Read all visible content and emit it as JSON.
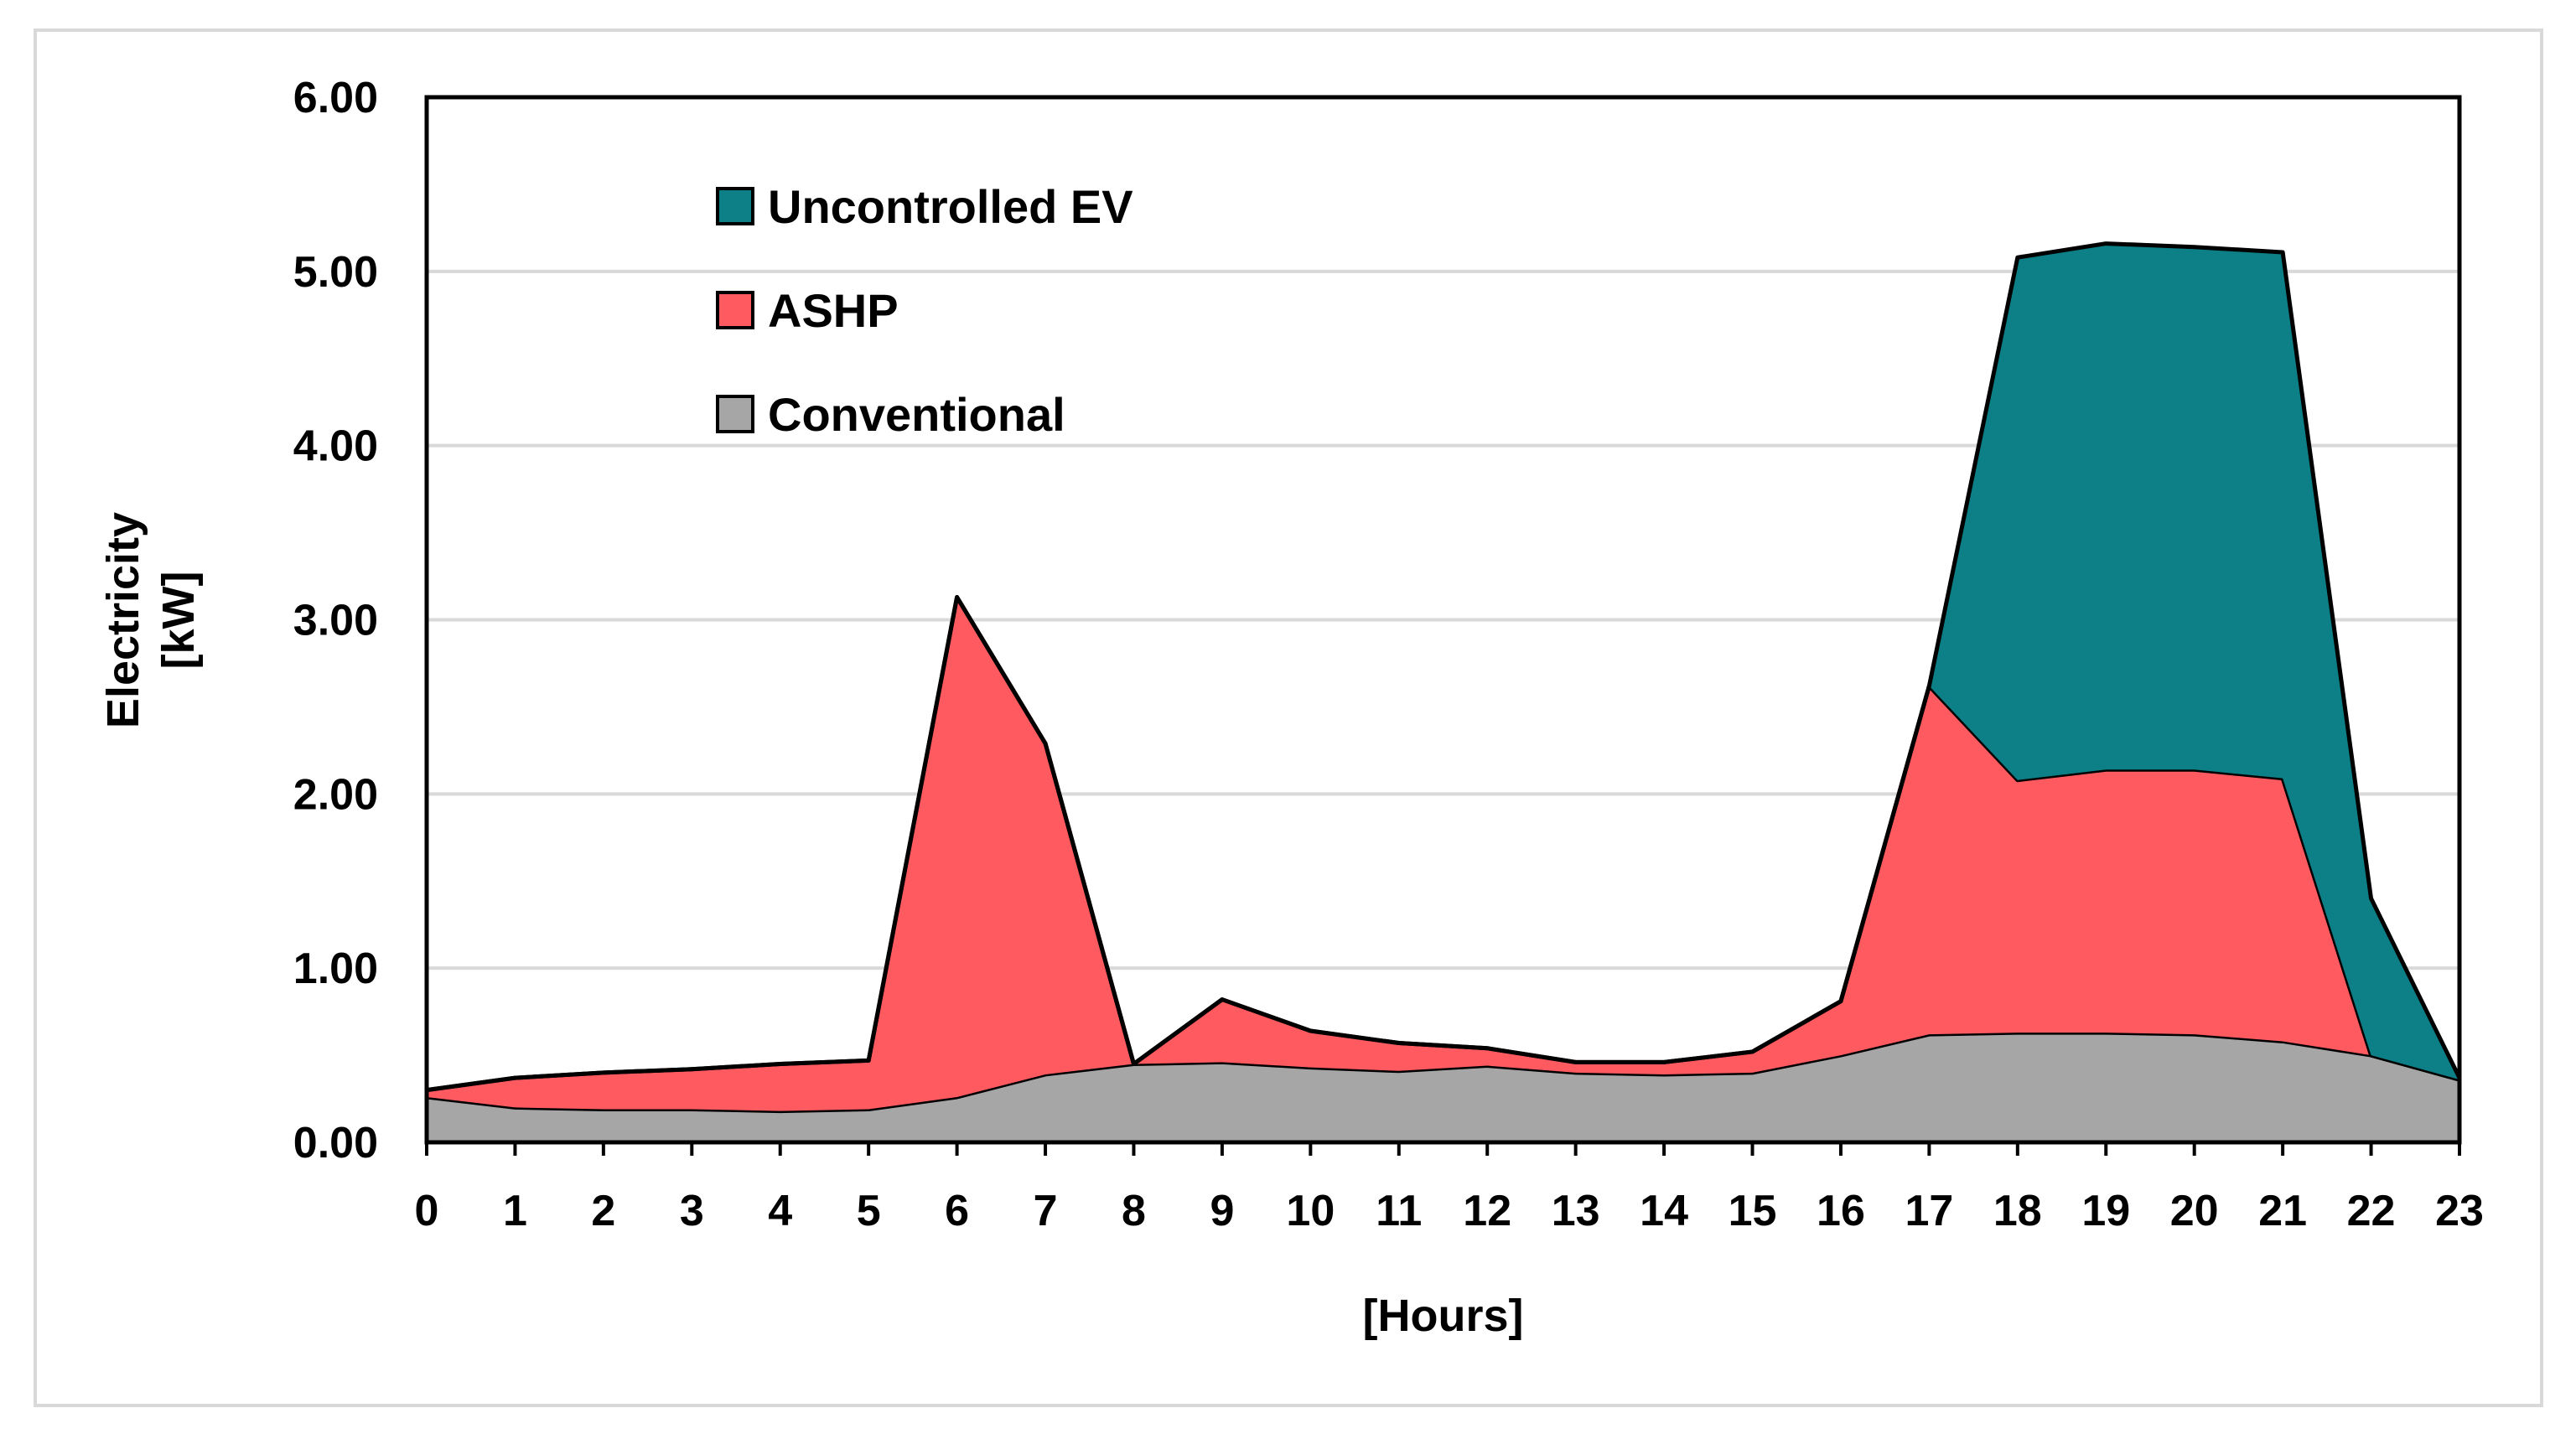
{
  "chart_data": {
    "type": "area",
    "stacked": true,
    "title": "",
    "xlabel": "[Hours]",
    "ylabel_lines": [
      "Electricity",
      "[kW]"
    ],
    "x": [
      0,
      1,
      2,
      3,
      4,
      5,
      6,
      7,
      8,
      9,
      10,
      11,
      12,
      13,
      14,
      15,
      16,
      17,
      18,
      19,
      20,
      21,
      22,
      23
    ],
    "x_tick_labels": [
      "0",
      "1",
      "2",
      "3",
      "4",
      "5",
      "6",
      "7",
      "8",
      "9",
      "10",
      "11",
      "12",
      "13",
      "14",
      "15",
      "16",
      "17",
      "18",
      "19",
      "20",
      "21",
      "22",
      "23"
    ],
    "ylim": [
      0,
      6
    ],
    "y_ticks": [
      0,
      1,
      2,
      3,
      4,
      5,
      6
    ],
    "y_tick_labels": [
      "0.00",
      "1.00",
      "2.00",
      "3.00",
      "4.00",
      "5.00",
      "6.00"
    ],
    "grid": "horizontal",
    "legend_position": "top-left",
    "series": [
      {
        "name": "Conventional",
        "color": "#a6a6a6",
        "values": [
          0.26,
          0.2,
          0.19,
          0.19,
          0.18,
          0.19,
          0.26,
          0.39,
          0.45,
          0.46,
          0.43,
          0.41,
          0.44,
          0.4,
          0.39,
          0.4,
          0.5,
          0.62,
          0.63,
          0.63,
          0.62,
          0.58,
          0.5,
          0.36
        ]
      },
      {
        "name": "ASHP",
        "color": "#ff5a5f",
        "values": [
          0.04,
          0.17,
          0.21,
          0.23,
          0.27,
          0.28,
          2.87,
          1.9,
          0.0,
          0.36,
          0.21,
          0.16,
          0.1,
          0.06,
          0.07,
          0.12,
          0.31,
          2.0,
          1.45,
          1.51,
          1.52,
          1.51,
          0.0,
          0.0
        ]
      },
      {
        "name": "Uncontrolled EV",
        "color": "#0d7f87",
        "values": [
          0.0,
          0.0,
          0.0,
          0.0,
          0.0,
          0.0,
          0.0,
          0.0,
          0.0,
          0.0,
          0.0,
          0.0,
          0.0,
          0.0,
          0.0,
          0.0,
          0.0,
          0.0,
          3.0,
          3.02,
          3.0,
          3.02,
          0.9,
          0.01
        ]
      }
    ],
    "legend": [
      "Uncontrolled EV",
      "ASHP",
      "Conventional"
    ]
  }
}
